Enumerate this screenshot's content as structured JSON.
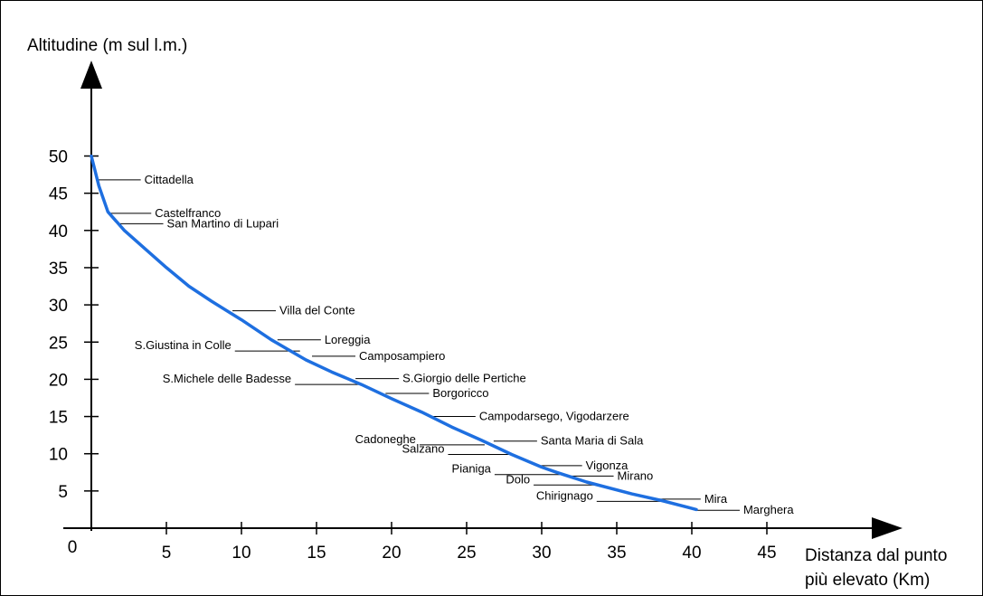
{
  "chart_data": {
    "type": "line",
    "title": "",
    "ylabel": "Altitudine (m sul l.m.)",
    "xlabel": "Distanza dal punto più elevato (Km)",
    "xlabel_lines": [
      "Distanza dal punto",
      "più elevato (Km)"
    ],
    "xlim": [
      0,
      50
    ],
    "ylim": [
      0,
      55
    ],
    "origin_label": "0",
    "x_ticks": [
      5,
      10,
      15,
      20,
      25,
      30,
      35,
      40,
      45
    ],
    "y_ticks": [
      5,
      10,
      15,
      20,
      25,
      30,
      35,
      40,
      45,
      50
    ],
    "grid": false,
    "line_color": "#1e6fe0",
    "series": [
      {
        "x": [
          0,
          0.5,
          1.1,
          2.2,
          3.6,
          5,
          6.5,
          8,
          10,
          12,
          14.3,
          16,
          18,
          20,
          22,
          24,
          26,
          28,
          30,
          31,
          33,
          36,
          38,
          40.3
        ],
        "y": [
          50,
          46,
          42.5,
          40,
          37.5,
          35,
          32.5,
          30.5,
          28,
          25.3,
          22.6,
          21,
          19.3,
          17.4,
          15.6,
          13.6,
          11.8,
          9.9,
          8.2,
          7.5,
          6.2,
          4.6,
          3.7,
          2.5
        ]
      }
    ],
    "annotations": [
      {
        "text": "Cittadella",
        "x": 0.4,
        "y": 46.8,
        "side": "right"
      },
      {
        "text": "Castelfranco",
        "x": 1.1,
        "y": 42.3,
        "side": "right"
      },
      {
        "text": "San Martino di Lupari",
        "x": 1.9,
        "y": 40.9,
        "side": "right"
      },
      {
        "text": "Villa del Conte",
        "x": 9.4,
        "y": 29.2,
        "side": "right"
      },
      {
        "text": "Loreggia",
        "x": 12.4,
        "y": 25.3,
        "side": "right"
      },
      {
        "text": "S.Giustina in Colle",
        "x": 13.9,
        "y": 23.8,
        "side": "left"
      },
      {
        "text": "Camposampiero",
        "x": 14.7,
        "y": 23.1,
        "side": "right"
      },
      {
        "text": "S.Giorgio delle Pertiche",
        "x": 17.6,
        "y": 20.1,
        "side": "right"
      },
      {
        "text": "S.Michele delle Badesse",
        "x": 17.9,
        "y": 19.3,
        "side": "left"
      },
      {
        "text": "Borgoricco",
        "x": 19.6,
        "y": 18.1,
        "side": "right"
      },
      {
        "text": "Campodarsego, Vigodarzere",
        "x": 22.7,
        "y": 15.0,
        "side": "right"
      },
      {
        "text": "Cadoneghe",
        "x": 26.2,
        "y": 11.2,
        "side": "left"
      },
      {
        "text": "Santa Maria di Sala",
        "x": 26.8,
        "y": 11.7,
        "side": "right"
      },
      {
        "text": "Salzano",
        "x": 28.1,
        "y": 9.9,
        "side": "left"
      },
      {
        "text": "Vigonza",
        "x": 29.8,
        "y": 8.4,
        "side": "right"
      },
      {
        "text": "Pianiga",
        "x": 31.2,
        "y": 7.2,
        "side": "left"
      },
      {
        "text": "Mirano",
        "x": 31.9,
        "y": 7.0,
        "side": "right"
      },
      {
        "text": "Dolo",
        "x": 33.8,
        "y": 5.8,
        "side": "left"
      },
      {
        "text": "Mira",
        "x": 37.7,
        "y": 3.9,
        "side": "right"
      },
      {
        "text": "Chirignago",
        "x": 38.0,
        "y": 3.6,
        "side": "left"
      },
      {
        "text": "Marghera",
        "x": 40.3,
        "y": 2.4,
        "side": "right"
      }
    ]
  }
}
